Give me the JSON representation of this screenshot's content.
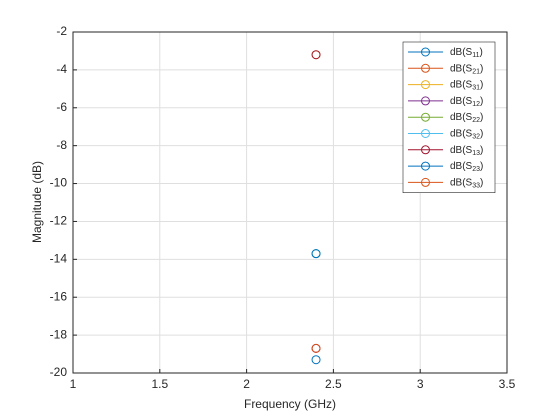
{
  "chart_data": {
    "type": "line",
    "x_label": "Frequency (GHz)",
    "y_label": "Magnitude (dB)",
    "x": [
      2.4
    ],
    "series": [
      {
        "name": "dB(S11)",
        "color": "#0072BD",
        "values": [
          -19.3
        ]
      },
      {
        "name": "dB(S21)",
        "color": "#D95319",
        "values": [
          -18.7
        ]
      },
      {
        "name": "dB(S31)",
        "color": "#EDB120",
        "values": [
          -3.2
        ]
      },
      {
        "name": "dB(S12)",
        "color": "#7E2F8E",
        "values": [
          -18.7
        ]
      },
      {
        "name": "dB(S22)",
        "color": "#77AC30",
        "values": [
          -13.7
        ]
      },
      {
        "name": "dB(S32)",
        "color": "#4DBEEE",
        "values": [
          -13.7
        ]
      },
      {
        "name": "dB(S13)",
        "color": "#A2142F",
        "values": [
          -3.2
        ]
      },
      {
        "name": "dB(S23)",
        "color": "#0072BD",
        "values": [
          -13.7
        ]
      },
      {
        "name": "dB(S33)",
        "color": "#D95319",
        "values": [
          -18.7
        ]
      }
    ],
    "xlim": [
      1,
      3.5
    ],
    "xticks": [
      1,
      1.5,
      2,
      2.5,
      3,
      3.5
    ],
    "ylim": [
      -20,
      -2
    ],
    "yticks": [
      -20,
      -18,
      -16,
      -14,
      -12,
      -10,
      -8,
      -6,
      -4,
      -2
    ],
    "grid": true,
    "legend": "northeast"
  }
}
